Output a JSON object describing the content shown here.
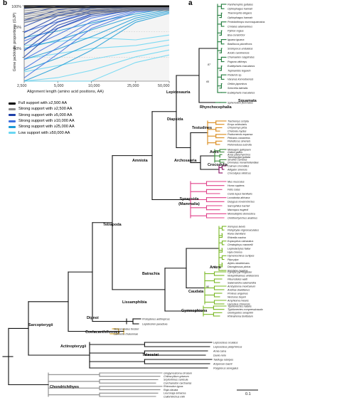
{
  "panel_labels": {
    "b": "b",
    "a": "a"
  },
  "chart_data": {
    "type": "line",
    "ylabel": "Gene jackknife proportions (GJP)",
    "xlabel": "Alignment length (amino acid positions, AA)",
    "x_ticks": [
      "2,500",
      "5,000",
      "10,000",
      "25,000",
      "50,000"
    ],
    "x_tick_values": [
      2500,
      5000,
      10000,
      25000,
      50000
    ],
    "y_ticks": [
      "100%",
      "75%",
      "50%"
    ],
    "y_tick_values": [
      100,
      75,
      50
    ],
    "xscale": "log",
    "xlim": [
      2500,
      50000
    ],
    "ylim": [
      27,
      100
    ],
    "grid": false,
    "legend_position": "below",
    "series_groups": [
      {
        "name": "Full support with ≥2,500 AA",
        "color": "#000000",
        "count": 4,
        "base_values": [
          100,
          100,
          100,
          100,
          100
        ]
      },
      {
        "name": "Strong support with ≥2,500 AA",
        "color": "#888888",
        "count": 14,
        "base_values": [
          96,
          99,
          100,
          100,
          100
        ]
      },
      {
        "name": "Strong support with ≥5,000 AA",
        "color": "#1e3fa8",
        "count": 9,
        "base_values": [
          74,
          90,
          97,
          99,
          100
        ]
      },
      {
        "name": "Strong support with ≥10,000 AA",
        "color": "#3d6fe0",
        "count": 7,
        "base_values": [
          57,
          72,
          88,
          97,
          99
        ]
      },
      {
        "name": "Strong support with ≥25,000 AA",
        "color": "#1b9bd6",
        "count": 5,
        "base_values": [
          48,
          58,
          70,
          88,
          95
        ]
      },
      {
        "name": "Low support with ≥50,000 AA",
        "color": "#69d6f2",
        "count": 5,
        "base_values": [
          36,
          42,
          48,
          56,
          62
        ]
      }
    ]
  },
  "tree": {
    "clades": [
      {
        "label": "Squamata",
        "color": "#1f7a3a"
      },
      {
        "label": "Lepidosauria",
        "color": "#111111"
      },
      {
        "label": "Rhynchocephalia",
        "color": "#111111"
      },
      {
        "label": "Diapsida",
        "color": "#111111"
      },
      {
        "label": "Testudines",
        "color": "#d98a1a"
      },
      {
        "label": "Aves",
        "color": "#3a8a3a"
      },
      {
        "label": "Archosauria",
        "color": "#111111"
      },
      {
        "label": "Crocodylia",
        "color": "#8a1a6a"
      },
      {
        "label": "Amniota",
        "color": "#111111"
      },
      {
        "label": "Synapsida (Mammalia)",
        "color": "#e0408a"
      },
      {
        "label": "Tetrapoda",
        "color": "#111111"
      },
      {
        "label": "Anura",
        "color": "#7ab826"
      },
      {
        "label": "Batrachia",
        "color": "#111111"
      },
      {
        "label": "Caudata",
        "color": "#7ab826"
      },
      {
        "label": "Lissamphibia",
        "color": "#111111"
      },
      {
        "label": "Gymnophiona",
        "color": "#7ab826"
      },
      {
        "label": "Dipnoi",
        "color": "#111111"
      },
      {
        "label": "Sarcopterygii",
        "color": "#111111"
      },
      {
        "label": "Coelacanthiformes",
        "color": "#111111"
      },
      {
        "label": "Actinopterygii",
        "color": "#111111"
      },
      {
        "label": "Teleostei",
        "color": "#111111"
      },
      {
        "label": "Chondrichthyes",
        "color": "#111111"
      }
    ],
    "groups": [
      {
        "id": "squamata",
        "color": "#1f7a3a",
        "species": [
          "Pantherophis guttatus",
          "Ophiophagus hannah",
          "Thamnophis elegans",
          "Ophiophagus hannah",
          "Protobothrops mucrosquamatus",
          "Crotalus adamanteus",
          "Python regius",
          "Boa constrictor",
          "Iguana iguana",
          "Basiliscus plumifrons",
          "Sceloporus undulatus",
          "Anolis carolinensis",
          "Chamaeleo calyptratus",
          "Pogona vitticeps",
          "Eublepharis macularius",
          "Tupinambis teguixin",
          "Podarcis sp.",
          "Varanus komodoensis",
          "Gekko japonicus",
          "Scincella lateralis",
          "Eublepharis macularius"
        ]
      },
      {
        "id": "rhyncho",
        "color": "#1f7a3a",
        "species": [
          "Sphenodon punctatus"
        ]
      },
      {
        "id": "testudines",
        "color": "#d98a1a",
        "species": [
          "Trachemys scripta",
          "Emys orbicularis",
          "Chrysemys picta",
          "Chelonia mydas",
          "Podocnemis expansa",
          "Pelusios castaneus",
          "Pelodiscus sinensis",
          "Pelomedusa subrufa"
        ]
      },
      {
        "id": "aves",
        "color": "#3a8a3a",
        "species": [
          "Meleagris gallopavo",
          "Gallus gallus",
          "Anas platyrhynchos",
          "Taeniopygia guttata",
          "Struthio camelus",
          "Dromaius novaehollandiae"
        ]
      },
      {
        "id": "crocodylia",
        "color": "#8a1a6a",
        "species": [
          "Caiman crocodilus",
          "Alligator sinensis",
          "Crocodylus niloticus"
        ]
      },
      {
        "id": "mammalia",
        "color": "#e0408a",
        "species": [
          "Mus musculus",
          "Homo sapiens",
          "Felis catus",
          "Canis lupus familiaris",
          "Loxodonta africana",
          "Dasypus novemcinctus",
          "Sarcophilus harrisii",
          "Macropus eugenii",
          "Monodelphis domestica",
          "Ornithorhynchus anatinus"
        ]
      },
      {
        "id": "anura",
        "color": "#7ab826",
        "species": [
          "Xenopus laevis",
          "Pelophylax nigromaculatus",
          "Rana clamitans",
          "Rhinella marina",
          "Eupsophus calcaratus",
          "Ceratophrys cranwelli",
          "Leptodactylus fallax",
          "Hyla cinerea",
          "Hymenochirus curtipes",
          "Pipa pipa",
          "Alytes obstetricans",
          "Discoglossus pictus",
          "Bombina maxima"
        ]
      },
      {
        "id": "caudata",
        "color": "#7ab826",
        "species": [
          "Cynops pyrrhogaster",
          "Notophthalmus viridescens",
          "Pleurodeles waltl",
          "Salamandra salamandra",
          "Ambystoma mexicanum",
          "Andrias davidianus",
          "Proteus anguinus",
          "Necturus beyeri",
          "Amphiuma means",
          "Hynobius chinensis"
        ]
      },
      {
        "id": "gymnophiona",
        "color": "#7ab826",
        "species": [
          "Typhlonectes natans",
          "Typhlonectes compressicauda",
          "Geotrypetes seraphini",
          "Rhinatrema bivittatum"
        ]
      },
      {
        "id": "dipnoi",
        "color": "#111111",
        "species": [
          "Protopterus aethiopicus",
          "Lepidosiren paradoxa"
        ]
      },
      {
        "id": "coelacanth",
        "color": "#d9a21a",
        "species": [
          "Neoceratodus forsteri",
          "Latimeria chalumnae"
        ]
      },
      {
        "id": "actino",
        "color": "#111111",
        "species": [
          "Lepisosteus oculatus",
          "Lepisosteus platyrhincus",
          "Amia calva",
          "Danio rerio",
          "Takifugu rubripes",
          "Acipenser baerii",
          "Polypterus senegalus"
        ]
      },
      {
        "id": "chondri",
        "color": "#8a8a8a",
        "species": [
          "Ginglymostoma cirratum",
          "Chiloscyllium griseum",
          "Scyliorhinus canicula",
          "Carcharodon carcharias",
          "Rhincodon typus",
          "Raja clavata",
          "Leucoraja erinacea",
          "Callorhinchus milii"
        ]
      }
    ],
    "node_labels": [
      "87",
      "65",
      "58",
      "90"
    ],
    "scale_label": "0.1"
  }
}
